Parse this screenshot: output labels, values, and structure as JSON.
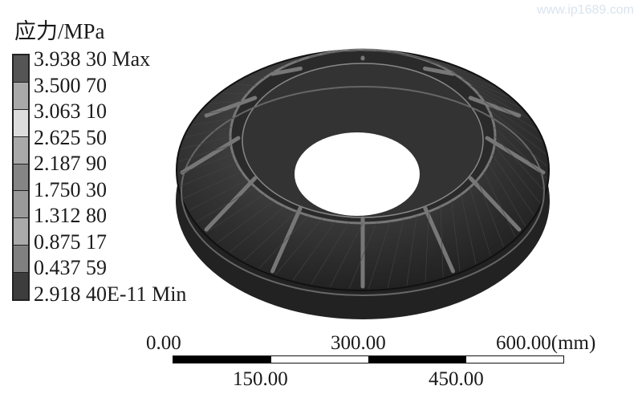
{
  "watermark": "www.ip1689.com",
  "legend": {
    "title": "应力/MPa",
    "labels": [
      "3.938 30 Max",
      "3.500 70",
      "3.063 10",
      "2.625 50",
      "2.187 90",
      "1.750 30",
      "1.312 80",
      "0.875 17",
      "0.437 59",
      "2.918 40E-11 Min"
    ],
    "band_colors": [
      "#555555",
      "#a9a9a9",
      "#dcdcdc",
      "#a9a9a9",
      "#858585",
      "#9a9a9a",
      "#aaaaaa",
      "#808080",
      "#3d3d3d"
    ]
  },
  "scale_bar": {
    "top_labels": [
      "0.00",
      "300.00",
      "600.00(mm)"
    ],
    "bottom_labels": [
      "150.00",
      "450.00"
    ],
    "segment_colors": [
      "#000000",
      "#ffffff",
      "#000000",
      "#ffffff"
    ]
  },
  "model": {
    "body_color": "#2b2b2b",
    "highlight_color": "#6a6a6a"
  }
}
